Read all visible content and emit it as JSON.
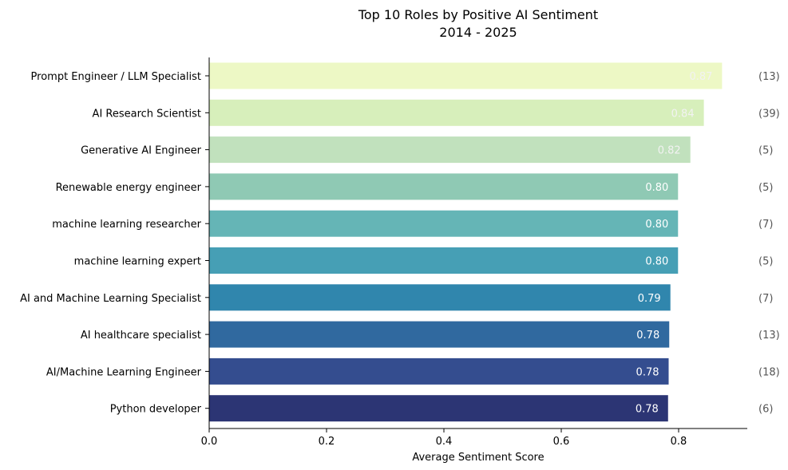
{
  "chart_data": {
    "type": "bar",
    "orientation": "horizontal",
    "title": "Top 10 Roles by Positive AI Sentiment",
    "subtitle": "2014 - 2025",
    "xlabel": "Average Sentiment Score",
    "ylabel": "",
    "xlim": [
      0,
      0.917
    ],
    "xticks": [
      "0.0",
      "0.2",
      "0.4",
      "0.6",
      "0.8"
    ],
    "grid": false,
    "categories": [
      "Prompt Engineer / LLM Specialist",
      "AI Research Scientist",
      "Generative AI Engineer",
      "Renewable energy engineer",
      "machine learning researcher",
      "machine learning expert",
      "AI and Machine Learning Specialist",
      "AI healthcare specialist",
      "AI/Machine Learning Engineer",
      "Python developer"
    ],
    "values": [
      0.874,
      0.843,
      0.82,
      0.799,
      0.799,
      0.799,
      0.786,
      0.784,
      0.783,
      0.782
    ],
    "value_labels": [
      "0.87",
      "0.84",
      "0.82",
      "0.80",
      "0.80",
      "0.80",
      "0.79",
      "0.78",
      "0.78",
      "0.78"
    ],
    "counts": [
      "(13)",
      "(39)",
      "(5)",
      "(5)",
      "(7)",
      "(5)",
      "(7)",
      "(13)",
      "(18)",
      "(6)"
    ],
    "colors": [
      "#edf8c5",
      "#d7efbb",
      "#c1e1bd",
      "#8fc9b4",
      "#65b5b6",
      "#469fb5",
      "#3086ad",
      "#30699f",
      "#344d8f",
      "#2c3574"
    ],
    "value_label_colors": [
      "#f2f2f2",
      "#f2f2f2",
      "#f2f2f2",
      "#ffffff",
      "#ffffff",
      "#ffffff",
      "#ffffff",
      "#ffffff",
      "#ffffff",
      "#ffffff"
    ]
  }
}
